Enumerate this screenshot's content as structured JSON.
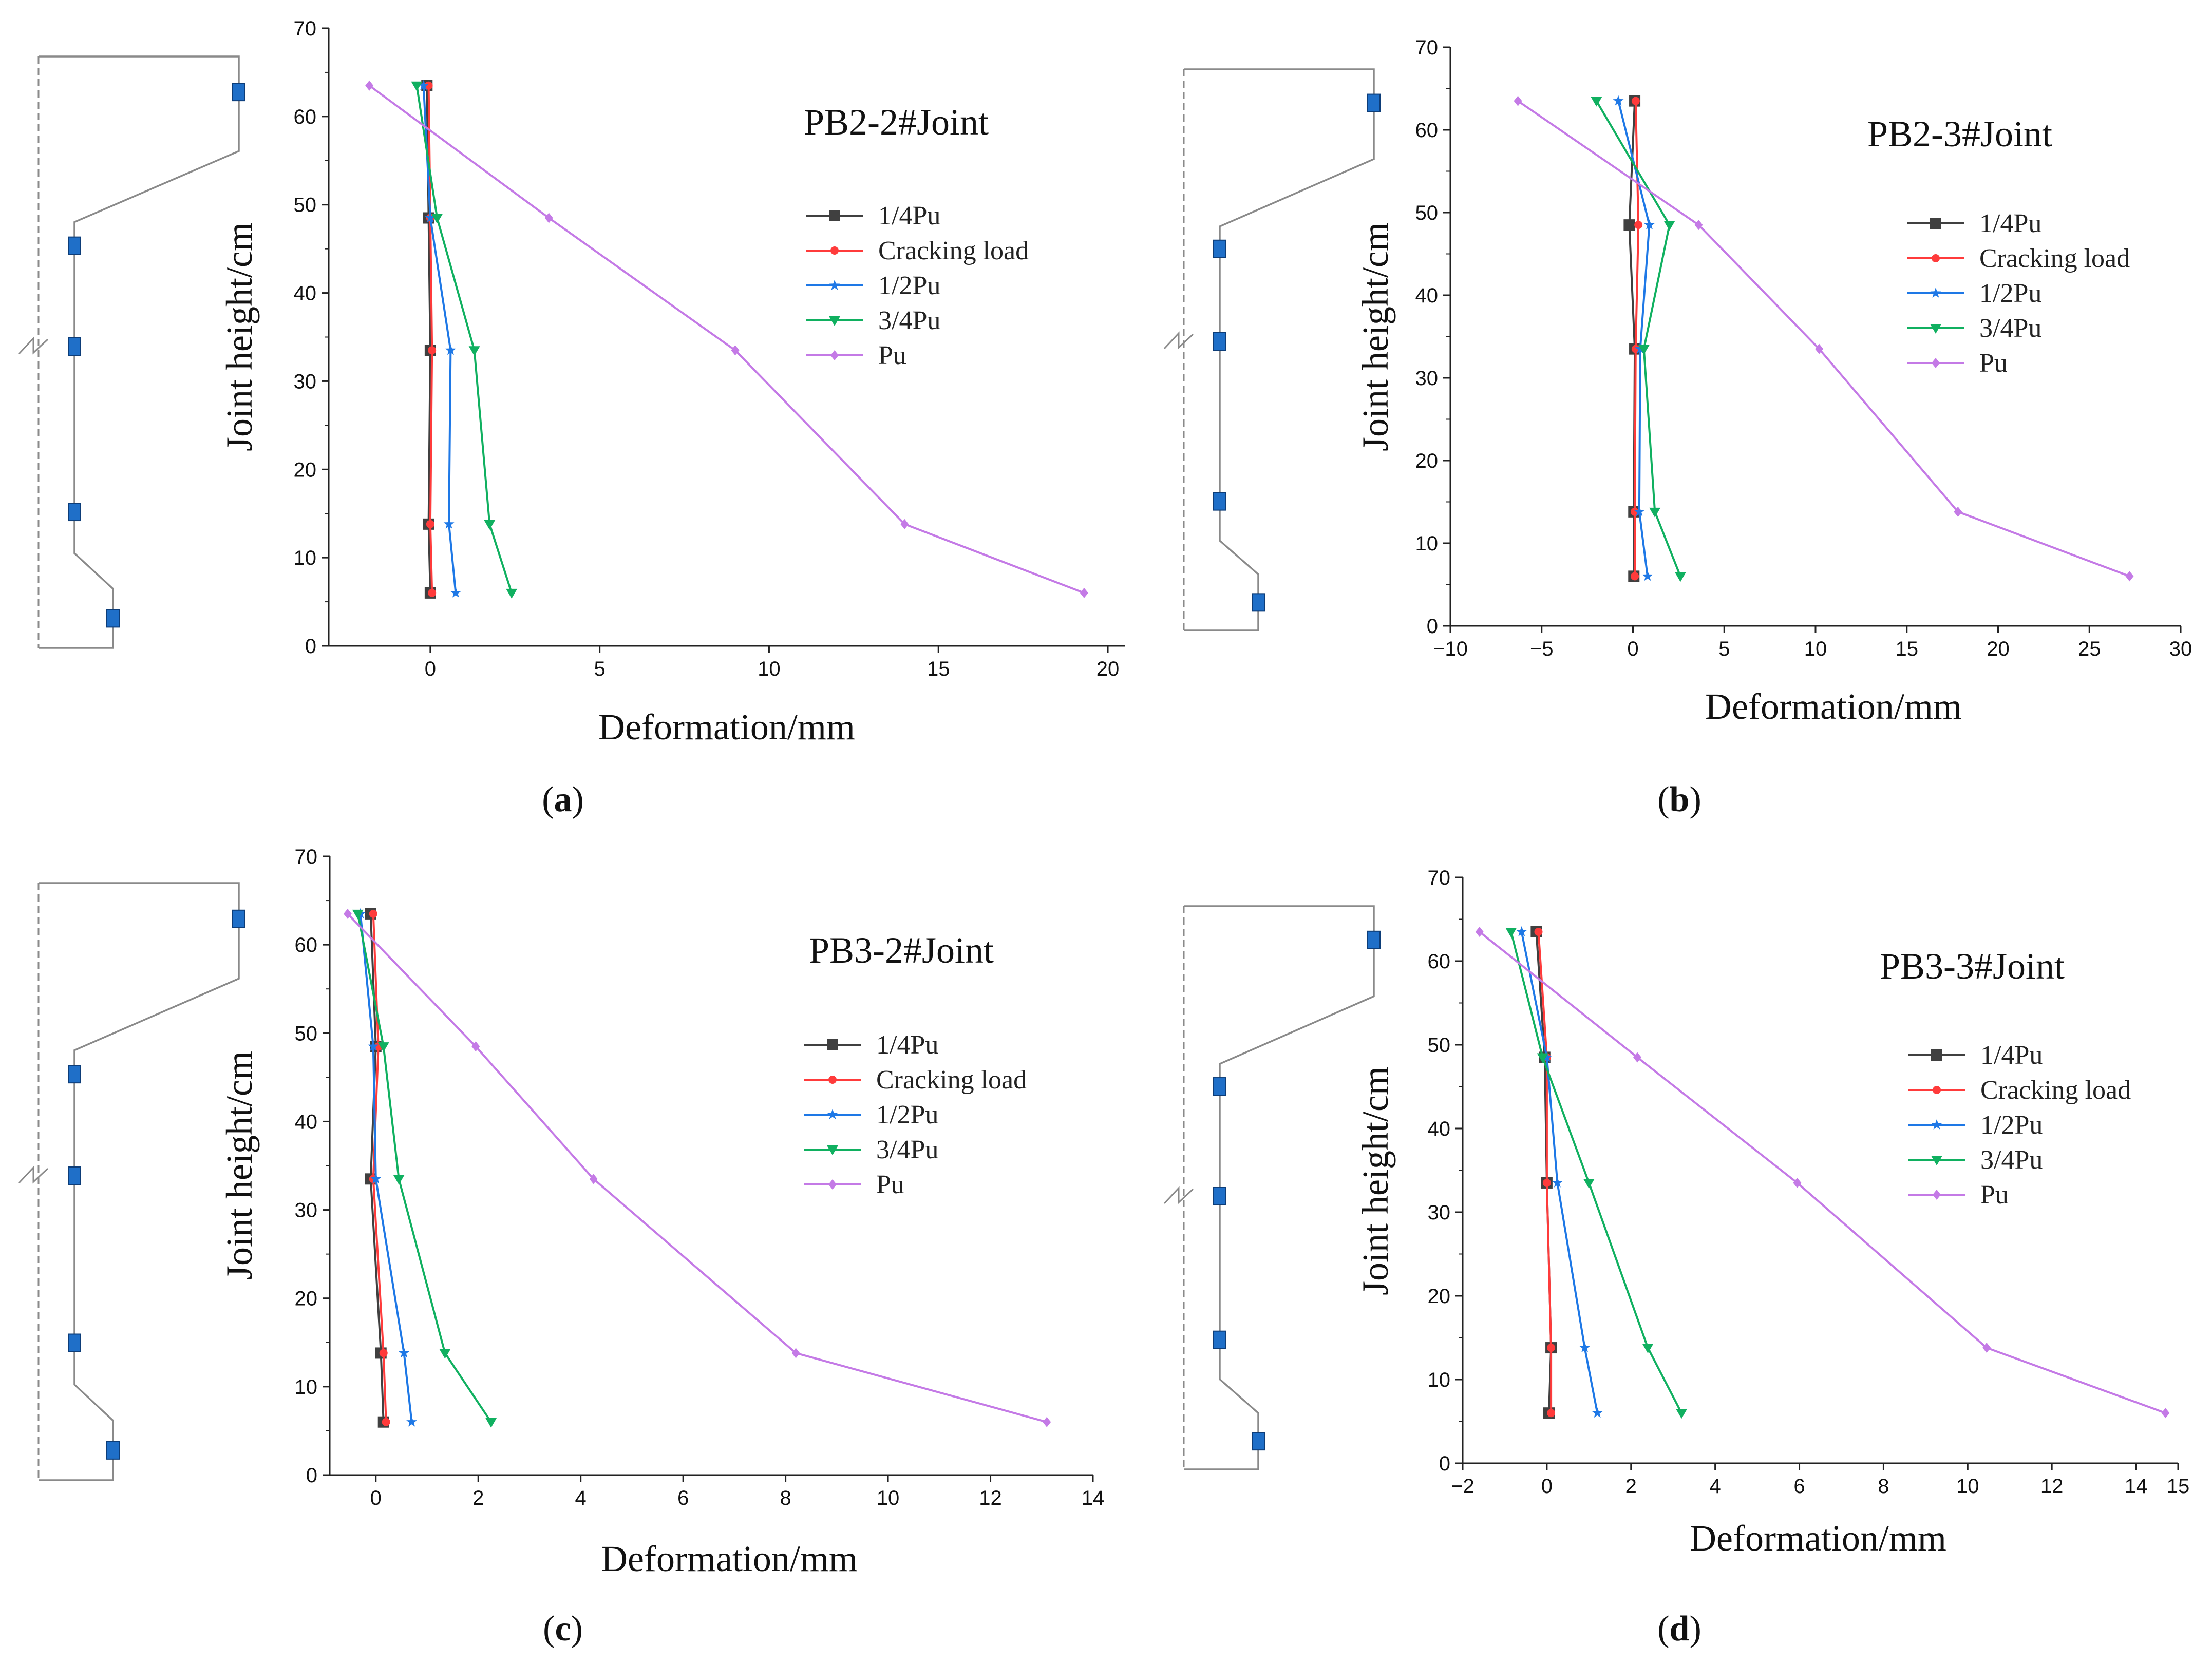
{
  "figure": {
    "colors": {
      "quarter": "#404040",
      "cracking": "#ff3b3b",
      "half": "#1e78e6",
      "threequarter": "#10b060",
      "pu": "#c47ae6",
      "gauge": "#1f6fc8",
      "outline": "#8a8a8a"
    }
  },
  "chart_data": [
    {
      "id": "a",
      "type": "line",
      "subfigure_label": "a",
      "title": "PB2-2#Joint",
      "xlabel": "Deformation/mm",
      "ylabel": "Joint height/cm",
      "xlim": [
        -3,
        20.5
      ],
      "ylim": [
        0,
        70
      ],
      "xticks": [
        0,
        5,
        10,
        15,
        20
      ],
      "yticks": [
        0,
        10,
        20,
        30,
        40,
        50,
        60,
        70
      ],
      "heights": [
        63.5,
        48.5,
        33.5,
        13.8,
        6
      ],
      "series": [
        {
          "name": "1/4Pu",
          "values": [
            -0.1,
            -0.05,
            0.0,
            -0.05,
            0.0
          ]
        },
        {
          "name": "Cracking load",
          "values": [
            -0.05,
            0.0,
            0.05,
            0.0,
            0.05
          ]
        },
        {
          "name": "1/2Pu",
          "values": [
            -0.2,
            0.0,
            0.6,
            0.55,
            0.75
          ]
        },
        {
          "name": "3/4Pu",
          "values": [
            -0.4,
            0.2,
            1.3,
            1.75,
            2.4
          ]
        },
        {
          "name": "Pu",
          "values": [
            -1.8,
            3.5,
            9.0,
            14.0,
            19.3
          ]
        }
      ]
    },
    {
      "id": "b",
      "type": "line",
      "subfigure_label": "b",
      "title": "PB2-3#Joint",
      "xlabel": "Deformation/mm",
      "ylabel": "Joint height/cm",
      "xlim": [
        -10,
        30
      ],
      "ylim": [
        0,
        70
      ],
      "xticks": [
        -10,
        -5,
        0,
        5,
        10,
        15,
        20,
        25,
        30
      ],
      "yticks": [
        0,
        10,
        20,
        30,
        40,
        50,
        60,
        70
      ],
      "heights": [
        63.5,
        48.5,
        33.5,
        13.8,
        6
      ],
      "series": [
        {
          "name": "1/4Pu",
          "values": [
            0.1,
            -0.2,
            0.1,
            0.05,
            0.05
          ]
        },
        {
          "name": "Cracking load",
          "values": [
            0.15,
            0.3,
            0.15,
            0.1,
            0.1
          ]
        },
        {
          "name": "1/2Pu",
          "values": [
            -0.8,
            0.9,
            0.4,
            0.35,
            0.8
          ]
        },
        {
          "name": "3/4Pu",
          "values": [
            -2.0,
            2.0,
            0.6,
            1.2,
            2.6
          ]
        },
        {
          "name": "Pu",
          "values": [
            -6.3,
            3.6,
            10.2,
            17.8,
            27.2
          ]
        }
      ]
    },
    {
      "id": "c",
      "type": "line",
      "subfigure_label": "c",
      "title": "PB3-2#Joint",
      "xlabel": "Deformation/mm",
      "ylabel": "Joint height/cm",
      "xlim": [
        -0.9,
        14
      ],
      "ylim": [
        0,
        70
      ],
      "xticks": [
        0,
        2,
        4,
        6,
        8,
        10,
        12,
        14
      ],
      "yticks": [
        0,
        10,
        20,
        30,
        40,
        50,
        60,
        70
      ],
      "heights": [
        63.5,
        48.5,
        33.5,
        13.8,
        6
      ],
      "series": [
        {
          "name": "1/4Pu",
          "values": [
            -0.1,
            0.0,
            -0.1,
            0.1,
            0.15
          ]
        },
        {
          "name": "Cracking load",
          "values": [
            -0.05,
            0.05,
            -0.05,
            0.15,
            0.2
          ]
        },
        {
          "name": "1/2Pu",
          "values": [
            -0.3,
            -0.05,
            0.0,
            0.55,
            0.7
          ]
        },
        {
          "name": "3/4Pu",
          "values": [
            -0.35,
            0.15,
            0.45,
            1.35,
            2.25
          ]
        },
        {
          "name": "Pu",
          "values": [
            -0.55,
            1.95,
            4.25,
            8.2,
            13.1
          ]
        }
      ]
    },
    {
      "id": "d",
      "type": "line",
      "subfigure_label": "d",
      "title": "PB3-3#Joint",
      "xlabel": "Deformation/mm",
      "ylabel": "Joint height/cm",
      "xlim": [
        -2,
        15
      ],
      "ylim": [
        0,
        70
      ],
      "xticks": [
        -2,
        0,
        2,
        4,
        6,
        8,
        10,
        12,
        14,
        15
      ],
      "yticks": [
        0,
        10,
        20,
        30,
        40,
        50,
        60,
        70
      ],
      "heights": [
        63.5,
        48.5,
        33.5,
        13.8,
        6
      ],
      "series": [
        {
          "name": "1/4Pu",
          "values": [
            -0.25,
            -0.05,
            0.0,
            0.1,
            0.05
          ]
        },
        {
          "name": "Cracking load",
          "values": [
            -0.2,
            0.0,
            0.0,
            0.1,
            0.1
          ]
        },
        {
          "name": "1/2Pu",
          "values": [
            -0.6,
            0.0,
            0.25,
            0.9,
            1.2
          ]
        },
        {
          "name": "3/4Pu",
          "values": [
            -0.85,
            -0.1,
            1.0,
            2.4,
            3.2
          ]
        },
        {
          "name": "Pu",
          "values": [
            -1.6,
            2.15,
            5.95,
            10.45,
            14.7
          ]
        }
      ]
    }
  ]
}
